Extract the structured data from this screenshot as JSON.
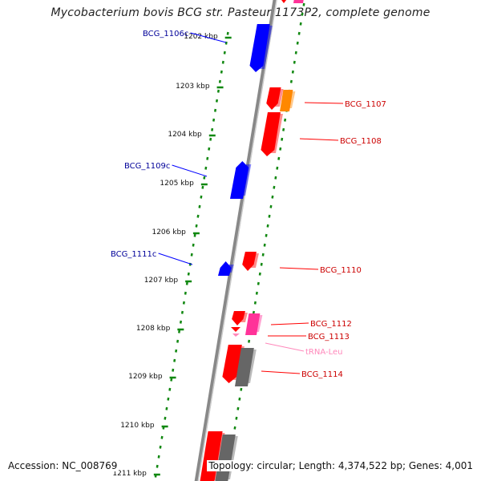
{
  "title": "Mycobacterium bovis BCG str. Pasteur 1173P2, complete genome",
  "footer": {
    "accession": "Accession: NC_008769",
    "summary": "Topology: circular; Length: 4,374,522 bp; Genes: 4,001"
  },
  "colors": {
    "forward_gene": "#ff0000",
    "reverse_gene": "#0000ff",
    "rna_gene": "#ff3399",
    "orange_gene": "#ff8800",
    "pseudo_gene": "#666666",
    "forward_label": "#cc0000",
    "reverse_label": "#000099",
    "trna_label": "#ff88bb",
    "tick_dots": "#118811",
    "backbone": "#888888"
  },
  "scale_labels": [
    "1202 kbp",
    "1203 kbp",
    "1204 kbp",
    "1205 kbp",
    "1206 kbp",
    "1207 kbp",
    "1208 kbp",
    "1209 kbp",
    "1210 kbp",
    "1211 kbp"
  ],
  "gene_labels": [
    {
      "id": "BCG_1106c",
      "strand": "reverse",
      "kind": "gene"
    },
    {
      "id": "BCG_1107",
      "strand": "forward",
      "kind": "gene"
    },
    {
      "id": "BCG_1108",
      "strand": "forward",
      "kind": "gene"
    },
    {
      "id": "BCG_1109c",
      "strand": "reverse",
      "kind": "gene"
    },
    {
      "id": "BCG_1110",
      "strand": "forward",
      "kind": "gene"
    },
    {
      "id": "BCG_1111c",
      "strand": "reverse",
      "kind": "gene"
    },
    {
      "id": "BCG_1112",
      "strand": "forward",
      "kind": "gene"
    },
    {
      "id": "BCG_1113",
      "strand": "forward",
      "kind": "gene"
    },
    {
      "id": "tRNA-Leu",
      "strand": "forward",
      "kind": "trna"
    },
    {
      "id": "BCG_1114",
      "strand": "forward",
      "kind": "gene"
    }
  ]
}
